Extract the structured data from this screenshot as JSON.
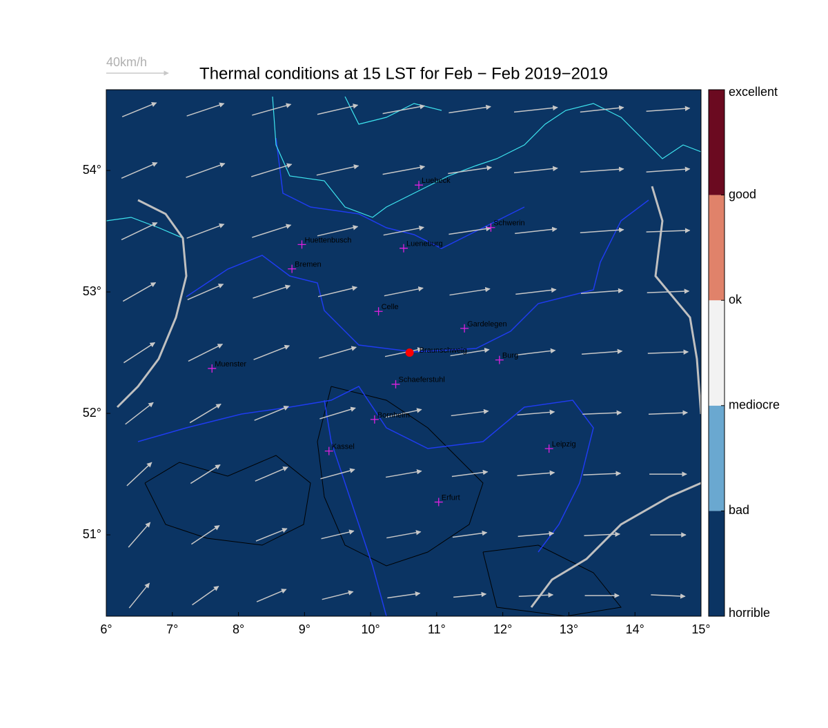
{
  "map": {
    "title": "Thermal conditions at 15 LST for Feb − Feb  2019−2019",
    "wind_reference": {
      "value": 40,
      "label": "40km/h"
    },
    "lonlim": [
      6,
      15
    ],
    "latlim": [
      50.33,
      54.665
    ],
    "xticks": [
      {
        "value": 6,
        "label": "6°"
      },
      {
        "value": 7,
        "label": "7°"
      },
      {
        "value": 8,
        "label": "8°"
      },
      {
        "value": 9,
        "label": "9°"
      },
      {
        "value": 10,
        "label": "10°"
      },
      {
        "value": 11,
        "label": "11°"
      },
      {
        "value": 12,
        "label": "12°"
      },
      {
        "value": 13,
        "label": "13°"
      },
      {
        "value": 14,
        "label": "14°"
      },
      {
        "value": 15,
        "label": "15°"
      }
    ],
    "yticks": [
      {
        "value": 51,
        "label": "51°"
      },
      {
        "value": 52,
        "label": "52°"
      },
      {
        "value": 53,
        "label": "53°"
      },
      {
        "value": 54,
        "label": "54°"
      }
    ],
    "background_color": "#0b3463",
    "colorbar": {
      "labels": [
        "horrible",
        "bad",
        "mediocre",
        "ok",
        "good",
        "excellent"
      ],
      "colors": [
        "#0b3463",
        "#6aa8d0",
        "#f2f2f2",
        "#e0826a",
        "#6b0a20"
      ]
    },
    "site": {
      "name": "Braunschweig",
      "lon": 10.59,
      "lat": 52.5,
      "color": "#ff0000"
    },
    "cities": [
      {
        "name": "Luebeck",
        "lon": 10.73,
        "lat": 53.88
      },
      {
        "name": "Schwerin",
        "lon": 11.82,
        "lat": 53.53
      },
      {
        "name": "Huettenbusch",
        "lon": 8.96,
        "lat": 53.39
      },
      {
        "name": "Lueneburg",
        "lon": 10.5,
        "lat": 53.36
      },
      {
        "name": "Bremen",
        "lon": 8.81,
        "lat": 53.19
      },
      {
        "name": "Celle",
        "lon": 10.12,
        "lat": 52.84
      },
      {
        "name": "Gardelegen",
        "lon": 11.42,
        "lat": 52.7
      },
      {
        "name": "Burg",
        "lon": 11.95,
        "lat": 52.44
      },
      {
        "name": "Muenster",
        "lon": 7.6,
        "lat": 52.37
      },
      {
        "name": "Schaeferstuhl",
        "lon": 10.38,
        "lat": 52.24
      },
      {
        "name": "Bornheim",
        "lon": 10.06,
        "lat": 51.95
      },
      {
        "name": "Kassel",
        "lon": 9.37,
        "lat": 51.69
      },
      {
        "name": "Leipzig",
        "lon": 12.7,
        "lat": 51.71
      },
      {
        "name": "Erfurt",
        "lon": 11.03,
        "lat": 51.27
      }
    ],
    "wind": {
      "lons": [
        6.5,
        7.5,
        8.5,
        9.5,
        10.5,
        11.5,
        12.5,
        13.5,
        14.5
      ],
      "lats": [
        54.5,
        54,
        53.5,
        53,
        52.5,
        52,
        51.5,
        51,
        50.5
      ],
      "u": [
        [
          22,
          24,
          25,
          26,
          27,
          27,
          28,
          28,
          28
        ],
        [
          23,
          25,
          26,
          27,
          27,
          28,
          28,
          28,
          28
        ],
        [
          23,
          24,
          25,
          26,
          26,
          27,
          27,
          28,
          28
        ],
        [
          21,
          23,
          24,
          25,
          25,
          26,
          26,
          27,
          27
        ],
        [
          20,
          22,
          23,
          24,
          24,
          25,
          25,
          26,
          26
        ],
        [
          18,
          20,
          22,
          23,
          23,
          24,
          24,
          25,
          25
        ],
        [
          16,
          19,
          21,
          22,
          23,
          23,
          24,
          24,
          24
        ],
        [
          14,
          18,
          20,
          21,
          22,
          22,
          23,
          23,
          23
        ],
        [
          13,
          17,
          19,
          20,
          21,
          21,
          22,
          22,
          22
        ]
      ],
      "v": [
        [
          9,
          8,
          7,
          6,
          5,
          4,
          3,
          3,
          2
        ],
        [
          10,
          9,
          8,
          6,
          5,
          4,
          3,
          2,
          2
        ],
        [
          11,
          9,
          8,
          6,
          5,
          4,
          3,
          2,
          1
        ],
        [
          12,
          10,
          8,
          6,
          5,
          4,
          3,
          2,
          1
        ],
        [
          13,
          11,
          9,
          7,
          5,
          4,
          3,
          2,
          1
        ],
        [
          14,
          12,
          9,
          7,
          5,
          3,
          2,
          1,
          1
        ],
        [
          15,
          12,
          9,
          6,
          4,
          3,
          2,
          1,
          0
        ],
        [
          16,
          12,
          8,
          5,
          4,
          3,
          2,
          1,
          0
        ],
        [
          16,
          12,
          8,
          5,
          3,
          2,
          1,
          0,
          -1
        ]
      ]
    }
  }
}
